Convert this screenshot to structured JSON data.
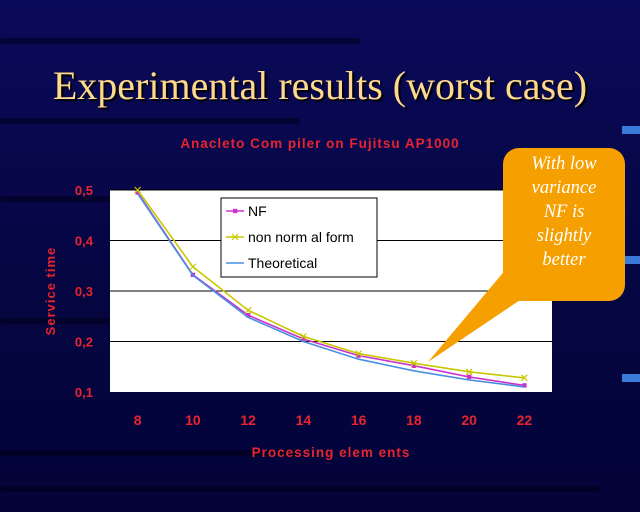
{
  "slide": {
    "title": "Experimental results (worst case)"
  },
  "callout": {
    "lines": [
      "With low",
      "variance",
      "NF is",
      "slightly",
      "better"
    ]
  },
  "colors": {
    "background": "#070752",
    "title": "#ffd98a",
    "chart_text": "#e8242e",
    "plot_area": "#ffffff",
    "callout_fill": "#f5a000",
    "series_nf": "#cc33cc",
    "series_nnf": "#c8c800",
    "series_theoretical": "#4a90e2"
  },
  "chart_data": {
    "type": "line",
    "title": "Anacleto Com piler on Fujitsu AP1000",
    "xlabel": "Processing elem ents",
    "ylabel": "Service time",
    "x": [
      8,
      10,
      12,
      14,
      16,
      18,
      20,
      22
    ],
    "x_tick_labels": [
      "8",
      "10",
      "12",
      "14",
      "16",
      "18",
      "20",
      "22"
    ],
    "ylim": [
      0.1,
      0.5
    ],
    "y_ticks": [
      0.1,
      0.2,
      0.3,
      0.4,
      0.5
    ],
    "y_tick_labels": [
      "0,1",
      "0,2",
      "0,3",
      "0,4",
      "0,5"
    ],
    "grid": true,
    "legend_position": "top-left",
    "series": [
      {
        "name": "NF",
        "marker": "square",
        "values": [
          0.495,
          0.332,
          0.252,
          0.205,
          0.172,
          0.152,
          0.13,
          0.113
        ]
      },
      {
        "name": "non norm al form",
        "marker": "cross",
        "values": [
          0.5,
          0.348,
          0.262,
          0.21,
          0.176,
          0.157,
          0.14,
          0.128
        ]
      },
      {
        "name": "Theoretical",
        "marker": "none",
        "values": [
          0.493,
          0.331,
          0.248,
          0.2,
          0.165,
          0.142,
          0.124,
          0.11
        ]
      }
    ]
  }
}
